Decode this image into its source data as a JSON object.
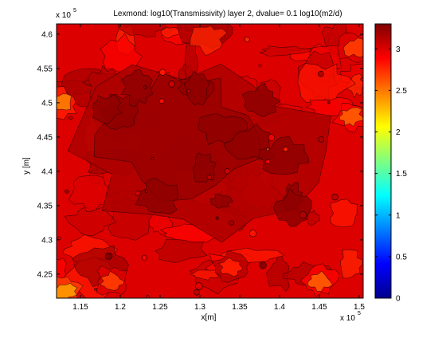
{
  "chart_data": {
    "type": "heatmap",
    "title": "Lexmond: log10(Transmissivity) layer 2, dvalue= 0.1 log10(m2/d)",
    "xlabel": "x[m]",
    "ylabel": "y [m]",
    "x_exponent_label": "x 10",
    "x_exponent_power": "5",
    "y_exponent_label": "x 10",
    "y_exponent_power": "5",
    "xlim": [
      1.12,
      1.505
    ],
    "ylim": [
      4.215,
      4.615
    ],
    "x_ticks": [
      1.15,
      1.2,
      1.25,
      1.3,
      1.35,
      1.4,
      1.45,
      1.5
    ],
    "x_tick_labels": [
      "1.15",
      "1.2",
      "1.25",
      "1.3",
      "1.35",
      "1.4",
      "1.45",
      "1.5"
    ],
    "y_ticks": [
      4.25,
      4.3,
      4.35,
      4.4,
      4.45,
      4.5,
      4.55,
      4.6
    ],
    "y_tick_labels": [
      "4.25",
      "4.3",
      "4.35",
      "4.4",
      "4.45",
      "4.5",
      "4.55",
      "4.6"
    ],
    "colorbar": {
      "range": [
        0,
        3.3
      ],
      "ticks": [
        0,
        0.5,
        1,
        1.5,
        2,
        2.5,
        3
      ],
      "tick_labels": [
        "0",
        "0.5",
        "1",
        "1.5",
        "2",
        "2.5",
        "3"
      ],
      "colormap": "jet"
    },
    "grid": false,
    "field_summary": {
      "dominant_value": 3.0,
      "high_center": [
        1.3,
        4.43
      ],
      "low_patches": [
        {
          "x": 1.125,
          "y": 4.5,
          "value": 2.5
        },
        {
          "x": 1.13,
          "y": 4.225,
          "value": 2.4
        },
        {
          "x": 1.49,
          "y": 4.48,
          "value": 2.6
        },
        {
          "x": 1.495,
          "y": 4.58,
          "value": 2.7
        },
        {
          "x": 1.45,
          "y": 4.24,
          "value": 2.6
        },
        {
          "x": 1.19,
          "y": 4.24,
          "value": 2.7
        },
        {
          "x": 1.34,
          "y": 4.26,
          "value": 2.8
        }
      ]
    }
  }
}
